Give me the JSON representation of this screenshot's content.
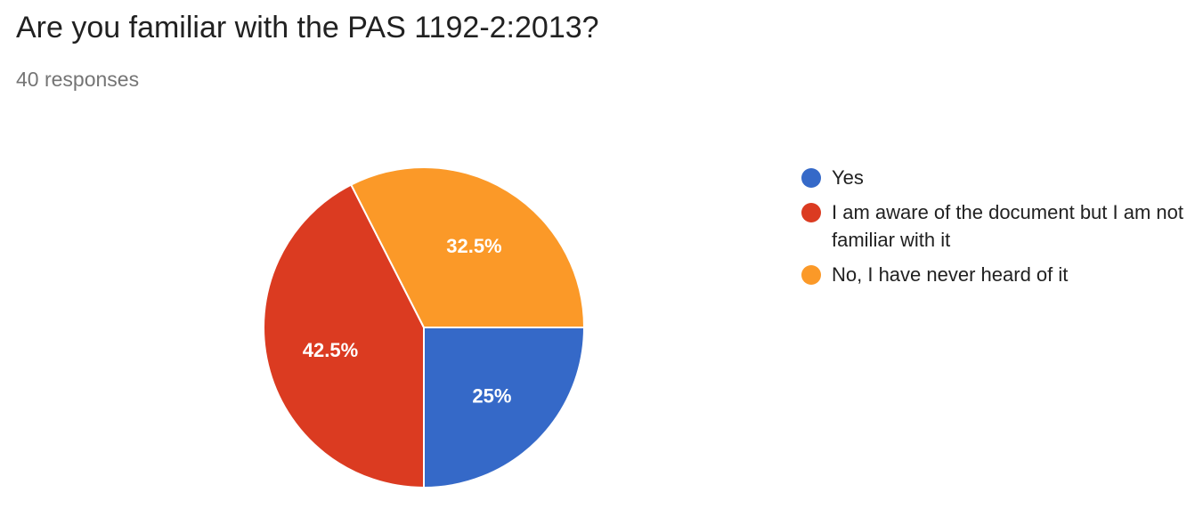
{
  "header": {
    "title": "Are you familiar with the PAS 1192-2:2013?",
    "responses": "40 responses"
  },
  "chart_data": {
    "type": "pie",
    "categories": [
      "Yes",
      "I am aware of the document but I am not familiar with it",
      "No, I have never heard of it"
    ],
    "values": [
      25,
      42.5,
      32.5
    ],
    "labels": [
      "25%",
      "42.5%",
      "32.5%"
    ],
    "colors": [
      "#3569c8",
      "#db3b21",
      "#fb9928"
    ],
    "legend_position": "right"
  }
}
